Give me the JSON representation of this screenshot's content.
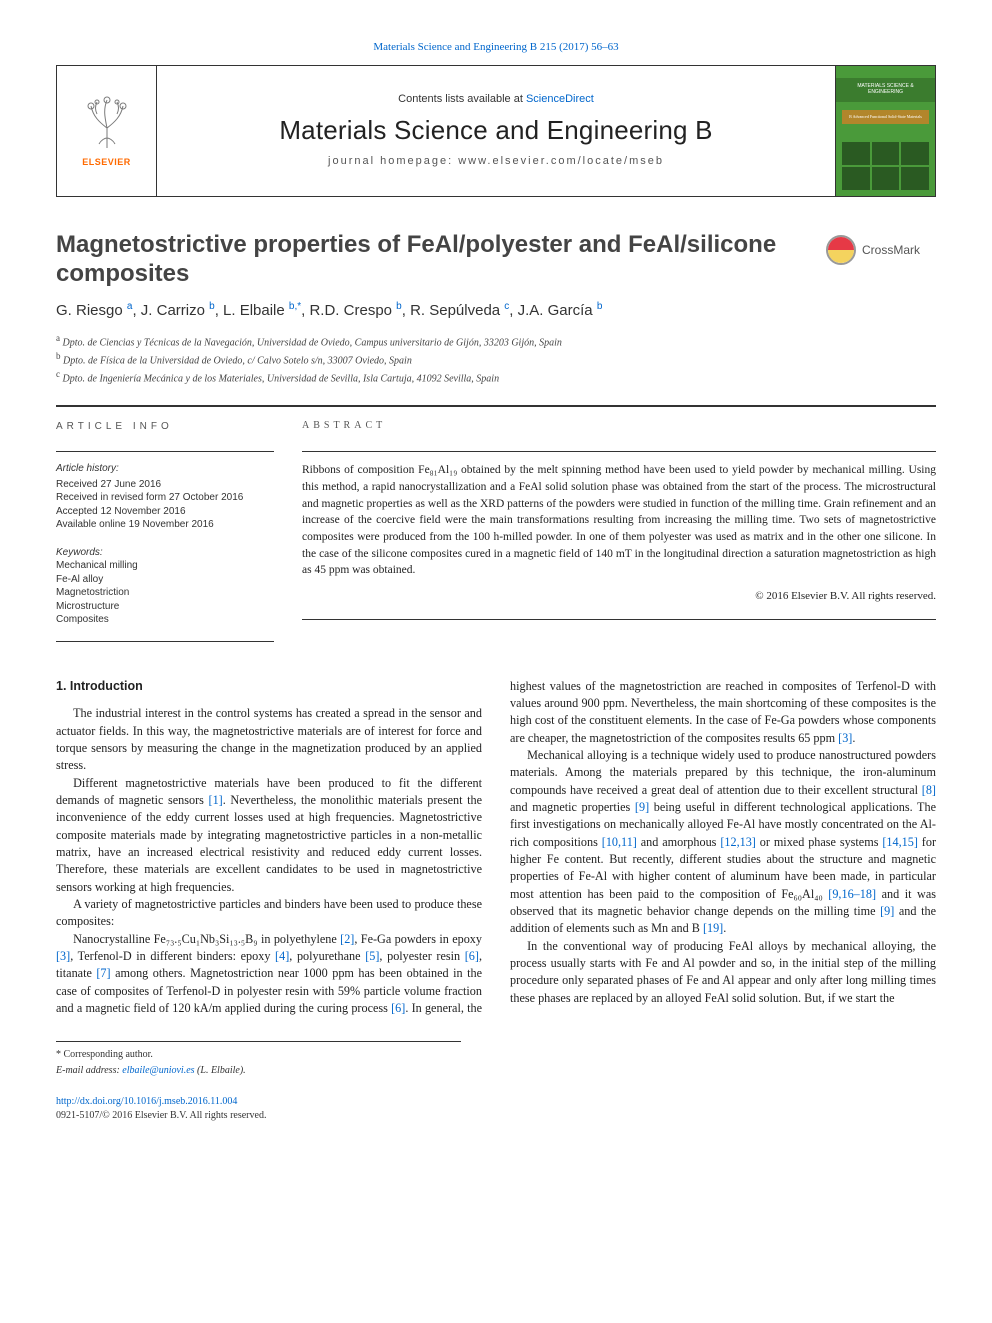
{
  "citation": "Materials Science and Engineering B 215 (2017) 56–63",
  "header": {
    "contents_prefix": "Contents lists available at ",
    "contents_link": "ScienceDirect",
    "journal": "Materials Science and Engineering B",
    "homepage_prefix": "journal homepage: ",
    "homepage_url": "www.elsevier.com/locate/mseb",
    "publisher": "ELSEVIER",
    "cover_title": "MATERIALS SCIENCE & ENGINEERING",
    "cover_sub": "B Advanced Functional Solid-State Materials"
  },
  "crossmark_label": "CrossMark",
  "title": "Magnetostrictive properties of FeAl/polyester and FeAl/silicone composites",
  "authors_html": "G. Riesgo <sup>a</sup>, J. Carrizo <sup>b</sup>, L. Elbaile <sup>b,*</sup>, R.D. Crespo <sup>b</sup>, R. Sepúlveda <sup>c</sup>, J.A. García <sup>b</sup>",
  "affiliations": {
    "a": "Dpto. de Ciencias y Técnicas de la Navegación, Universidad de Oviedo, Campus universitario de Gijón, 33203 Gijón, Spain",
    "b": "Dpto. de Física de la Universidad de Oviedo, c/ Calvo Sotelo s/n, 33007 Oviedo, Spain",
    "c": "Dpto. de Ingeniería Mecánica y de los Materiales, Universidad de Sevilla, Isla Cartuja, 41092 Sevilla, Spain"
  },
  "article_info": {
    "label": "ARTICLE INFO",
    "history_label": "Article history:",
    "received": "Received 27 June 2016",
    "revised": "Received in revised form 27 October 2016",
    "accepted": "Accepted 12 November 2016",
    "online": "Available online 19 November 2016",
    "keywords_label": "Keywords:",
    "keywords": [
      "Mechanical milling",
      "Fe-Al alloy",
      "Magnetostriction",
      "Microstructure",
      "Composites"
    ]
  },
  "abstract": {
    "label": "ABSTRACT",
    "text": "Ribbons of composition Fe₈₁Al₁₉ obtained by the melt spinning method have been used to yield powder by mechanical milling. Using this method, a rapid nanocrystallization and a FeAl solid solution phase was obtained from the start of the process. The microstructural and magnetic properties as well as the XRD patterns of the powders were studied in function of the milling time. Grain refinement and an increase of the coercive field were the main transformations resulting from increasing the milling time. Two sets of magnetostrictive composites were produced from the 100 h-milled powder. In one of them polyester was used as matrix and in the other one silicone. In the case of the silicone composites cured in a magnetic field of 140 mT in the longitudinal direction a saturation magnetostriction as high as 45 ppm was obtained.",
    "copyright": "© 2016 Elsevier B.V. All rights reserved."
  },
  "body": {
    "section1_heading": "1. Introduction",
    "p1": "The industrial interest in the control systems has created a spread in the sensor and actuator fields. In this way, the magnetostrictive materials are of interest for force and torque sensors by measuring the change in the magnetization produced by an applied stress.",
    "p2_a": "Different magnetostrictive materials have been produced to fit the different demands of magnetic sensors ",
    "p2_r1": "[1]",
    "p2_b": ". Nevertheless, the monolithic materials present the inconvenience of the eddy current losses used at high frequencies. Magnetostrictive composite materials made by integrating magnetostrictive particles in a non-metallic matrix, have an increased electrical resistivity and reduced eddy current losses. Therefore, these materials are excellent candidates to be used in magnetostrictive sensors working at high frequencies.",
    "p3": "A variety of magnetostrictive particles and binders have been used to produce these composites:",
    "p4_a": "Nanocrystalline Fe₇₃.₅Cu₁Nb₃Si₁₃.₅B₉ in polyethylene ",
    "p4_r2": "[2]",
    "p4_b": ", Fe-Ga powders in epoxy ",
    "p4_r3": "[3]",
    "p4_c": ", Terfenol-D in different binders: epoxy ",
    "p4_r4": "[4]",
    "p4_d": ", polyurethane ",
    "p4_r5": "[5]",
    "p4_e": ", polyester resin ",
    "p4_r6": "[6]",
    "p4_f": ", titanate ",
    "p4_r7": "[7]",
    "p4_g": " among others. Magnetostriction near 1000 ppm has been obtained in the case of composites of Terfenol-D in polyester resin with 59% particle ",
    "p5_a": "volume fraction and a magnetic field of 120 kA/m applied during the curing process ",
    "p5_r6": "[6]",
    "p5_b": ". In general, the highest values of the magnetostriction are reached in composites of Terfenol-D with values around 900 ppm. Nevertheless, the main shortcoming of these composites is the high cost of the constituent elements. In the case of Fe-Ga powders whose components are cheaper, the magnetostriction of the composites results 65 ppm ",
    "p5_r3": "[3]",
    "p5_c": ".",
    "p6_a": "Mechanical alloying is a technique widely used to produce nanostructured powders materials. Among the materials prepared by this technique, the iron-aluminum compounds have received a great deal of attention due to their excellent structural ",
    "p6_r8": "[8]",
    "p6_b": " and magnetic properties ",
    "p6_r9": "[9]",
    "p6_c": " being useful in different technological applications. The first investigations on mechanically alloyed Fe-Al have mostly concentrated on the Al-rich compositions ",
    "p6_r10": "[10,11]",
    "p6_d": " and amorphous ",
    "p6_r12": "[12,13]",
    "p6_e": " or mixed phase systems ",
    "p6_r14": "[14,15]",
    "p6_f": " for higher Fe content. But recently, different studies about the structure and magnetic properties of Fe-Al with higher content of aluminum have been made, in particular most attention has been paid to the composition of Fe₆₀Al₄₀ ",
    "p6_r916": "[9,16–18]",
    "p6_g": " and it was observed that its magnetic behavior change depends on the milling time ",
    "p6_r9b": "[9]",
    "p6_h": " and the addition of elements such as Mn and B ",
    "p6_r19": "[19]",
    "p6_i": ".",
    "p7": "In the conventional way of producing FeAl alloys by mechanical alloying, the process usually starts with Fe and Al powder and so, in the initial step of the milling procedure only separated phases of Fe and Al appear and only after long milling times these phases are replaced by an alloyed FeAl solid solution. But, if we start the"
  },
  "footer": {
    "corr": "* Corresponding author.",
    "email_label": "E-mail address: ",
    "email": "elbaile@uniovi.es",
    "email_author": " (L. Elbaile).",
    "doi": "http://dx.doi.org/10.1016/j.mseb.2016.11.004",
    "copyright_line": "0921-5107/© 2016 Elsevier B.V. All rights reserved."
  },
  "colors": {
    "link": "#0066cc",
    "elsevier_orange": "#ff6a00",
    "cover_green": "#4a9a3a",
    "crossmark_red": "#e63946",
    "crossmark_yellow": "#f4d35e"
  }
}
